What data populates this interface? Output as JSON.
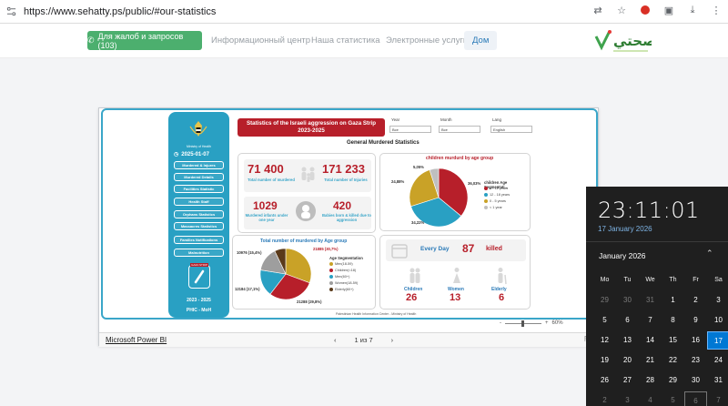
{
  "browser": {
    "url": "https://www.sehatty.ps/public/#our-statistics"
  },
  "site_nav": {
    "complaint_button": "Для жалоб и запросов (103)",
    "links": [
      "Информационный центр",
      "Наша статистика",
      "Электронные услуги",
      "Дом"
    ],
    "logo_text": "صحتي"
  },
  "report": {
    "sidebar": {
      "ministry": "Ministry of Health",
      "date": "2025-01-07",
      "buttons": [
        "Murdered & Injures",
        "Murdered Details",
        "Facilities Statistic",
        "Health Staff",
        "Orphans Statistics",
        "Massacres Statistics",
        "Families Notifications",
        "Malnutrition"
      ],
      "stamp_label": "GAZA STRIP",
      "years": "2023 - 2025",
      "org": "PHIC - MoH"
    },
    "title_line1": "Statistics of the Israeli aggression on Gaza Strip",
    "title_line2": "2023-2025",
    "filters": [
      {
        "label": "Year",
        "value": "Все"
      },
      {
        "label": "Month",
        "value": "Все"
      },
      {
        "label": "Lang",
        "value": "English"
      }
    ],
    "section_title": "General Murdered Statistics",
    "murdered_total": "71 400",
    "murdered_total_label": "Total number of murdered",
    "injuries_total": "171 233",
    "injuries_total_label": "Total number of Injuries",
    "infants_total": "1029",
    "infants_label": "Murdered infants under one year",
    "babies_total": "420",
    "babies_label": "Babies born & killed due to aggression",
    "footer_note": "Palestinian Health Information Center - Ministry of Health",
    "daily": {
      "prefix": "Every Day",
      "value": "87",
      "suffix": "killed",
      "children_label": "Children",
      "children_value": "26",
      "women_label": "Women",
      "women_value": "13",
      "elderly_label": "Elderly",
      "elderly_value": "6"
    },
    "zoom_value": "60%"
  },
  "chart_data": [
    {
      "type": "pie",
      "title": "children murdurd by age group",
      "legend_title": "children Age Segmentati...",
      "categories": [
        "6 - 12 years",
        "12 - 18 years",
        "0 - 5 years",
        "< 1 year"
      ],
      "values": [
        36.03,
        34.22,
        24.88,
        5.05
      ],
      "value_labels": [
        "36,03%",
        "34,22%",
        "24,88%",
        "5,05%"
      ],
      "colors": [
        "#b71f2a",
        "#29a0c3",
        "#c9a227",
        "#bfbfbf"
      ],
      "legend": "right"
    },
    {
      "type": "pie",
      "title": "Total number of murdered by Age group",
      "legend_title": "Age Segmentation",
      "categories": [
        "Men(18-59)",
        "Children(<18)",
        "Men(60+)",
        "Women(18-59)",
        "Elderly(60+)"
      ],
      "series_labels": [
        "21885 (30,7%)",
        "21288 (29,8%)",
        "12184 (17,1%)",
        "10976 (15,4%)"
      ],
      "values": [
        21885,
        21288,
        12184,
        10976,
        5067
      ],
      "colors": [
        "#c9a227",
        "#b71f2a",
        "#29a0c3",
        "#9e9e9e",
        "#5a3a1a"
      ],
      "legend": "right"
    }
  ],
  "pbi_bar": {
    "link": "Microsoft Power BI",
    "pager": "1 из 7"
  },
  "clock": {
    "time": "23:11:01",
    "date": "17 January 2026",
    "month": "January 2026",
    "weekdays": [
      "Mo",
      "Tu",
      "We",
      "Th",
      "Fr",
      "Sa"
    ],
    "weeks": [
      [
        "29",
        "30",
        "31",
        "1",
        "2",
        "3"
      ],
      [
        "5",
        "6",
        "7",
        "8",
        "9",
        "10"
      ],
      [
        "12",
        "13",
        "14",
        "15",
        "16",
        "17"
      ],
      [
        "19",
        "20",
        "21",
        "22",
        "23",
        "24"
      ],
      [
        "26",
        "27",
        "28",
        "29",
        "30",
        "31"
      ],
      [
        "2",
        "3",
        "4",
        "5",
        "6",
        "7"
      ]
    ]
  }
}
